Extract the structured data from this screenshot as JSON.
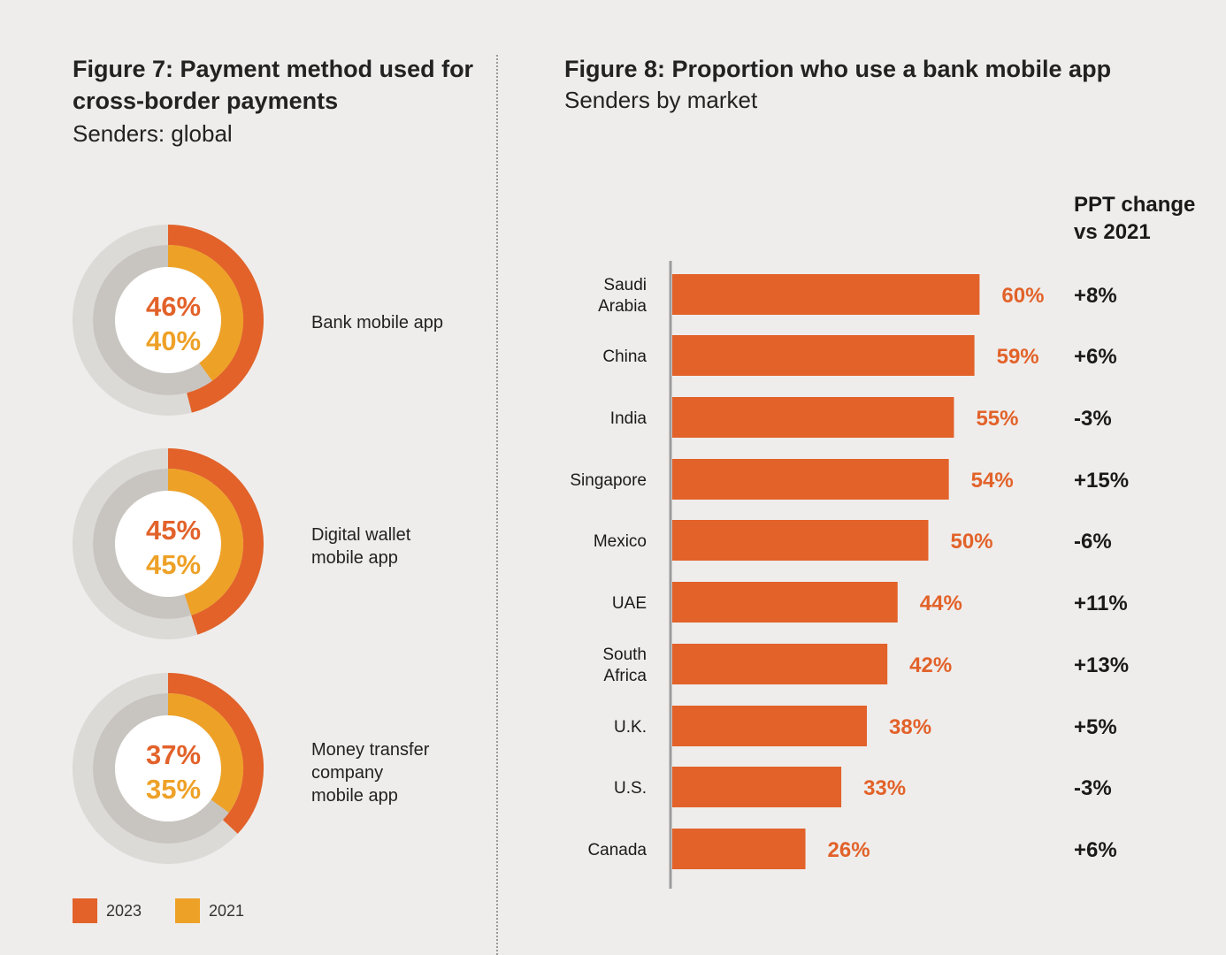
{
  "colors": {
    "c2023": "#e2622a",
    "c2021": "#eea127",
    "track_outer": "#dcdad7",
    "track_inner": "#c8c5c1",
    "bar": "#e2622a",
    "axis": "#9c9c9c"
  },
  "figure7": {
    "title_line1": "Figure 7: Payment method used for",
    "title_line2": "cross-border payments",
    "subtitle": "Senders: global",
    "legend": [
      {
        "label": "2023"
      },
      {
        "label": "2021"
      }
    ]
  },
  "figure8": {
    "title": "Figure 8: Proportion who use a bank mobile app",
    "subtitle": "Senders by market",
    "ppt_header_line1": "PPT change",
    "ppt_header_line2": "vs 2021"
  },
  "chart_data": [
    {
      "type": "pie",
      "subtype": "nested-donut",
      "categories": [
        "Bank mobile app",
        "Digital wallet mobile app",
        "Money transfer company mobile app"
      ],
      "category_labels": [
        "Bank mobile app",
        "Digital wallet\nmobile app",
        "Money transfer\ncompany\nmobile app"
      ],
      "series": [
        {
          "name": "2023",
          "values": [
            46,
            45,
            37
          ],
          "labels": [
            "46%",
            "45%",
            "37%"
          ]
        },
        {
          "name": "2021",
          "values": [
            40,
            45,
            35
          ],
          "labels": [
            "40%",
            "45%",
            "35%"
          ]
        }
      ],
      "legend": "bottom"
    },
    {
      "type": "bar",
      "orientation": "horizontal",
      "categories": [
        "Saudi\nArabia",
        "China",
        "India",
        "Singapore",
        "Mexico",
        "UAE",
        "South\nAfrica",
        "U.K.",
        "U.S.",
        "Canada"
      ],
      "values": [
        60,
        59,
        55,
        54,
        50,
        44,
        42,
        38,
        33,
        26
      ],
      "value_labels": [
        "60%",
        "59%",
        "55%",
        "54%",
        "50%",
        "44%",
        "42%",
        "38%",
        "33%",
        "26%"
      ],
      "ppt_change": [
        "+8%",
        "+6%",
        "-3%",
        "+15%",
        "-6%",
        "+11%",
        "+13%",
        "+5%",
        "-3%",
        "+6%"
      ],
      "unit": "%"
    }
  ]
}
